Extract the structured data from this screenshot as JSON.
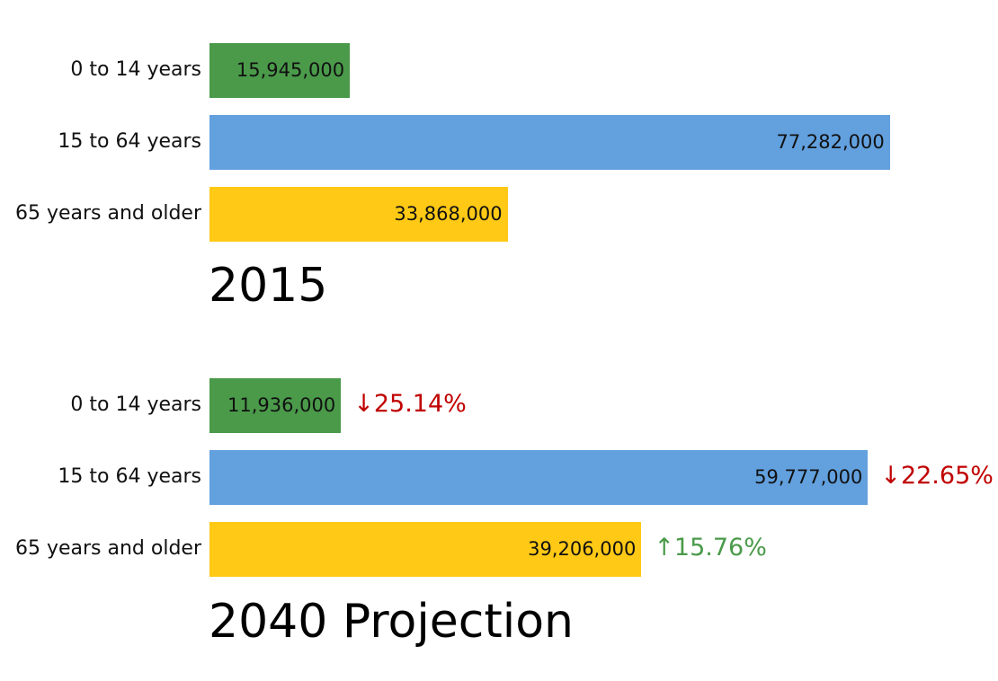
{
  "chart_data": [
    {
      "type": "bar",
      "orientation": "horizontal",
      "title": "2015",
      "categories": [
        "0 to 14 years",
        "15 to 64 years",
        "65 years and older"
      ],
      "values": [
        15945000,
        77282000,
        33868000
      ],
      "labels": [
        "15,945,000",
        "77,282,000",
        "33,868,000"
      ],
      "colors": [
        "#4a9a4a",
        "#62a0de",
        "#ffc915"
      ],
      "xlim": [
        0,
        81700000
      ],
      "grid": false,
      "axes_visible": false
    },
    {
      "type": "bar",
      "orientation": "horizontal",
      "title": "2040 Projection",
      "categories": [
        "0 to 14 years",
        "15 to 64 years",
        "65 years and older"
      ],
      "values": [
        11936000,
        59777000,
        39206000
      ],
      "labels": [
        "11,936,000",
        "59,777,000",
        "39,206,000"
      ],
      "changes": [
        "↓25.14%",
        "↓22.65%",
        "↑15.76%"
      ],
      "change_colors": [
        "#c00000",
        "#c00000",
        "#4a9a4a"
      ],
      "colors": [
        "#4a9a4a",
        "#62a0de",
        "#ffc915"
      ],
      "xlim": [
        0,
        65300000
      ],
      "grid": false,
      "axes_visible": false
    }
  ]
}
